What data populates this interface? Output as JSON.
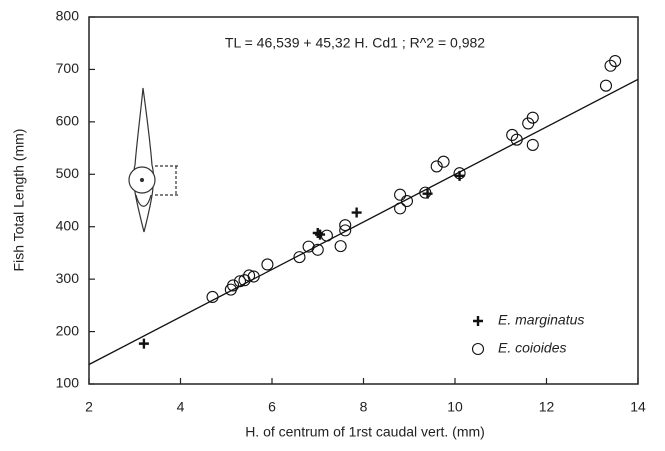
{
  "chart_data": {
    "type": "scatter",
    "annotation": "TL = 46,539 + 45,32  H. Cd1 ;  R^2 = 0,982",
    "x_label": "H. of centrum of 1rst caudal vert. (mm)",
    "y_label": "Fish Total Length (mm)",
    "xlim": [
      2,
      14
    ],
    "xticks": [
      2,
      4,
      6,
      8,
      10,
      12,
      14
    ],
    "ylim": [
      100,
      800
    ],
    "yticks": [
      100,
      200,
      300,
      400,
      500,
      600,
      700,
      800
    ],
    "trendline": {
      "intercept": 46.539,
      "slope": 45.32
    },
    "legend": "lower right",
    "series": [
      {
        "name": "E. marginatus",
        "marker": "plus",
        "color": "#111",
        "x": [
          3.2,
          7.0,
          7.05,
          7.85,
          9.4,
          10.1
        ],
        "values": [
          177,
          388,
          385,
          427,
          463,
          497
        ]
      },
      {
        "name": "E. coioides",
        "marker": "circle",
        "color": "#111",
        "x": [
          4.7,
          5.1,
          5.15,
          5.3,
          5.4,
          5.5,
          5.6,
          5.9,
          6.6,
          6.8,
          7.0,
          7.2,
          7.5,
          7.6,
          7.6,
          8.8,
          8.8,
          8.95,
          9.35,
          9.6,
          9.75,
          10.1,
          11.25,
          11.35,
          11.6,
          11.7,
          11.7,
          13.3,
          13.4,
          13.5
        ],
        "values": [
          266,
          280,
          288,
          296,
          298,
          307,
          305,
          328,
          342,
          362,
          356,
          383,
          363,
          393,
          403,
          435,
          461,
          449,
          465,
          515,
          524,
          502,
          575,
          566,
          597,
          608,
          556,
          669,
          707,
          716
        ]
      }
    ]
  }
}
